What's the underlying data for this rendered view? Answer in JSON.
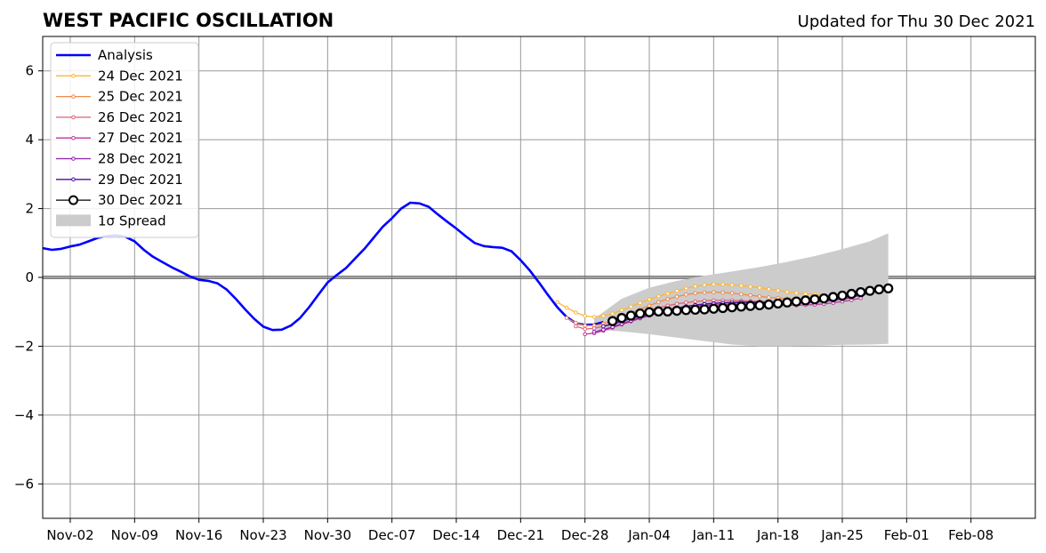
{
  "chart_data": {
    "type": "line",
    "title": "WEST PACIFIC OSCILLATION",
    "subtitle": "Updated for Thu 30 Dec 2021",
    "xlabel": "",
    "ylabel": "",
    "xlim": [
      "2021-10-30",
      "2022-02-15"
    ],
    "ylim": [
      -7,
      7
    ],
    "yticks": [
      -6,
      -4,
      -2,
      0,
      2,
      4,
      6
    ],
    "ytick_labels": [
      "−6",
      "−4",
      "−2",
      "0",
      "2",
      "4",
      "6"
    ],
    "xticks": [
      "2021-11-02",
      "2021-11-09",
      "2021-11-16",
      "2021-11-23",
      "2021-11-30",
      "2021-12-07",
      "2021-12-14",
      "2021-12-21",
      "2021-12-28",
      "2022-01-04",
      "2022-01-11",
      "2022-01-18",
      "2022-01-25",
      "2022-02-01",
      "2022-02-08"
    ],
    "xtick_labels": [
      "Nov-02",
      "Nov-09",
      "Nov-16",
      "Nov-23",
      "Nov-30",
      "Dec-07",
      "Dec-14",
      "Dec-21",
      "Dec-28",
      "Jan-04",
      "Jan-11",
      "Jan-18",
      "Jan-25",
      "Feb-01",
      "Feb-08"
    ],
    "grid": true,
    "legend_position": "top-left",
    "zero_line": 0,
    "series": [
      {
        "name": "Analysis",
        "color": "#0000ff",
        "style": "line",
        "x": [
          "2021-10-30",
          "2021-10-31",
          "2021-11-01",
          "2021-11-02",
          "2021-11-03",
          "2021-11-04",
          "2021-11-05",
          "2021-11-06",
          "2021-11-07",
          "2021-11-08",
          "2021-11-09",
          "2021-11-10",
          "2021-11-11",
          "2021-11-12",
          "2021-11-13",
          "2021-11-14",
          "2021-11-15",
          "2021-11-16",
          "2021-11-17",
          "2021-11-18",
          "2021-11-19",
          "2021-11-20",
          "2021-11-21",
          "2021-11-22",
          "2021-11-23",
          "2021-11-24",
          "2021-11-25",
          "2021-11-26",
          "2021-11-27",
          "2021-11-28",
          "2021-11-29",
          "2021-11-30",
          "2021-12-01",
          "2021-12-02",
          "2021-12-03",
          "2021-12-04",
          "2021-12-05",
          "2021-12-06",
          "2021-12-07",
          "2021-12-08",
          "2021-12-09",
          "2021-12-10",
          "2021-12-11",
          "2021-12-12",
          "2021-12-13",
          "2021-12-14",
          "2021-12-15",
          "2021-12-16",
          "2021-12-17",
          "2021-12-18",
          "2021-12-19",
          "2021-12-20",
          "2021-12-21",
          "2021-12-22",
          "2021-12-23",
          "2021-12-24",
          "2021-12-25",
          "2021-12-26",
          "2021-12-27",
          "2021-12-28",
          "2021-12-29",
          "2021-12-30"
        ],
        "y": [
          0.85,
          0.8,
          0.83,
          0.9,
          0.95,
          1.05,
          1.15,
          1.2,
          1.22,
          1.18,
          1.05,
          0.8,
          0.6,
          0.45,
          0.3,
          0.17,
          0.03,
          -0.07,
          -0.1,
          -0.17,
          -0.35,
          -0.62,
          -0.92,
          -1.2,
          -1.43,
          -1.53,
          -1.52,
          -1.4,
          -1.18,
          -0.86,
          -0.5,
          -0.15,
          0.07,
          0.27,
          0.55,
          0.83,
          1.15,
          1.47,
          1.72,
          2.0,
          2.17,
          2.15,
          2.05,
          1.83,
          1.62,
          1.42,
          1.2,
          1.0,
          0.91,
          0.88,
          0.86,
          0.76,
          0.5,
          0.2,
          -0.15,
          -0.52,
          -0.87,
          -1.15,
          -1.33,
          -1.38,
          -1.37,
          -1.3
        ]
      },
      {
        "name": "24 Dec 2021",
        "color": "#fbb735",
        "style": "marker-line",
        "x": [
          "2021-12-25",
          "2021-12-26",
          "2021-12-27",
          "2021-12-28",
          "2021-12-29",
          "2021-12-30",
          "2021-12-31",
          "2022-01-01",
          "2022-01-02",
          "2022-01-03",
          "2022-01-04",
          "2022-01-05",
          "2022-01-06",
          "2022-01-07",
          "2022-01-08",
          "2022-01-09",
          "2022-01-10",
          "2022-01-11",
          "2022-01-12",
          "2022-01-13",
          "2022-01-14",
          "2022-01-15",
          "2022-01-16",
          "2022-01-17",
          "2022-01-18",
          "2022-01-19",
          "2022-01-20",
          "2022-01-21",
          "2022-01-22",
          "2022-01-23",
          "2022-01-24"
        ],
        "y": [
          -0.72,
          -0.88,
          -1.02,
          -1.12,
          -1.15,
          -1.12,
          -1.05,
          -0.95,
          -0.85,
          -0.74,
          -0.64,
          -0.55,
          -0.47,
          -0.39,
          -0.32,
          -0.26,
          -0.22,
          -0.2,
          -0.2,
          -0.22,
          -0.24,
          -0.27,
          -0.3,
          -0.34,
          -0.38,
          -0.42,
          -0.45,
          -0.48,
          -0.5,
          -0.52,
          -0.55
        ]
      },
      {
        "name": "25 Dec 2021",
        "color": "#f1894a",
        "style": "marker-line",
        "x": [
          "2021-12-26",
          "2021-12-27",
          "2021-12-28",
          "2021-12-29",
          "2021-12-30",
          "2021-12-31",
          "2022-01-01",
          "2022-01-02",
          "2022-01-03",
          "2022-01-04",
          "2022-01-05",
          "2022-01-06",
          "2022-01-07",
          "2022-01-08",
          "2022-01-09",
          "2022-01-10",
          "2022-01-11",
          "2022-01-12",
          "2022-01-13",
          "2022-01-14",
          "2022-01-15",
          "2022-01-16",
          "2022-01-17",
          "2022-01-18",
          "2022-01-19",
          "2022-01-20",
          "2022-01-21",
          "2022-01-22",
          "2022-01-23",
          "2022-01-24",
          "2022-01-25"
        ],
        "y": [
          -1.18,
          -1.32,
          -1.4,
          -1.4,
          -1.35,
          -1.25,
          -1.14,
          -1.03,
          -0.92,
          -0.82,
          -0.72,
          -0.63,
          -0.56,
          -0.5,
          -0.46,
          -0.44,
          -0.43,
          -0.44,
          -0.46,
          -0.49,
          -0.52,
          -0.55,
          -0.58,
          -0.6,
          -0.62,
          -0.63,
          -0.64,
          -0.64,
          -0.63,
          -0.62,
          -0.6
        ]
      },
      {
        "name": "26 Dec 2021",
        "color": "#e06176",
        "style": "marker-line",
        "x": [
          "2021-12-27",
          "2021-12-28",
          "2021-12-29",
          "2021-12-30",
          "2021-12-31",
          "2022-01-01",
          "2022-01-02",
          "2022-01-03",
          "2022-01-04",
          "2022-01-05",
          "2022-01-06",
          "2022-01-07",
          "2022-01-08",
          "2022-01-09",
          "2022-01-10",
          "2022-01-11",
          "2022-01-12",
          "2022-01-13",
          "2022-01-14",
          "2022-01-15",
          "2022-01-16",
          "2022-01-17",
          "2022-01-18",
          "2022-01-19",
          "2022-01-20",
          "2022-01-21",
          "2022-01-22",
          "2022-01-23",
          "2022-01-24",
          "2022-01-25",
          "2022-01-26"
        ],
        "y": [
          -1.42,
          -1.5,
          -1.48,
          -1.42,
          -1.33,
          -1.23,
          -1.13,
          -1.03,
          -0.95,
          -0.88,
          -0.82,
          -0.77,
          -0.73,
          -0.7,
          -0.68,
          -0.67,
          -0.67,
          -0.67,
          -0.68,
          -0.69,
          -0.7,
          -0.71,
          -0.72,
          -0.72,
          -0.72,
          -0.71,
          -0.7,
          -0.68,
          -0.66,
          -0.63,
          -0.6
        ]
      },
      {
        "name": "27 Dec 2021",
        "color": "#b83a9b",
        "style": "marker-line",
        "x": [
          "2021-12-28",
          "2021-12-29",
          "2021-12-30",
          "2021-12-31",
          "2022-01-01",
          "2022-01-02",
          "2022-01-03",
          "2022-01-04",
          "2022-01-05",
          "2022-01-06",
          "2022-01-07",
          "2022-01-08",
          "2022-01-09",
          "2022-01-10",
          "2022-01-11",
          "2022-01-12",
          "2022-01-13",
          "2022-01-14",
          "2022-01-15",
          "2022-01-16",
          "2022-01-17",
          "2022-01-18",
          "2022-01-19",
          "2022-01-20",
          "2022-01-21",
          "2022-01-22",
          "2022-01-23",
          "2022-01-24",
          "2022-01-25",
          "2022-01-26",
          "2022-01-27"
        ],
        "y": [
          -1.65,
          -1.62,
          -1.55,
          -1.46,
          -1.37,
          -1.28,
          -1.19,
          -1.11,
          -1.04,
          -0.98,
          -0.93,
          -0.89,
          -0.85,
          -0.82,
          -0.8,
          -0.79,
          -0.78,
          -0.78,
          -0.78,
          -0.79,
          -0.8,
          -0.8,
          -0.81,
          -0.81,
          -0.8,
          -0.79,
          -0.77,
          -0.74,
          -0.7,
          -0.66,
          -0.6
        ]
      },
      {
        "name": "28 Dec 2021",
        "color": "#8c1fab",
        "style": "marker-line",
        "x": [
          "2021-12-29",
          "2021-12-30",
          "2021-12-31",
          "2022-01-01",
          "2022-01-02",
          "2022-01-03",
          "2022-01-04",
          "2022-01-05",
          "2022-01-06",
          "2022-01-07",
          "2022-01-08",
          "2022-01-09",
          "2022-01-10",
          "2022-01-11",
          "2022-01-12",
          "2022-01-13",
          "2022-01-14",
          "2022-01-15",
          "2022-01-16",
          "2022-01-17",
          "2022-01-18",
          "2022-01-19",
          "2022-01-20",
          "2022-01-21",
          "2022-01-22",
          "2022-01-23",
          "2022-01-24",
          "2022-01-25",
          "2022-01-26",
          "2022-01-27",
          "2022-01-28"
        ],
        "y": [
          -1.58,
          -1.52,
          -1.44,
          -1.35,
          -1.26,
          -1.17,
          -1.09,
          -1.01,
          -0.95,
          -0.89,
          -0.84,
          -0.8,
          -0.77,
          -0.75,
          -0.74,
          -0.73,
          -0.73,
          -0.73,
          -0.74,
          -0.74,
          -0.75,
          -0.75,
          -0.75,
          -0.74,
          -0.72,
          -0.7,
          -0.67,
          -0.63,
          -0.58,
          -0.52,
          -0.46
        ]
      },
      {
        "name": "29 Dec 2021",
        "color": "#4b0c9c",
        "style": "marker-line",
        "x": [
          "2021-12-30",
          "2021-12-31",
          "2022-01-01",
          "2022-01-02",
          "2022-01-03",
          "2022-01-04",
          "2022-01-05",
          "2022-01-06",
          "2022-01-07",
          "2022-01-08",
          "2022-01-09",
          "2022-01-10",
          "2022-01-11",
          "2022-01-12",
          "2022-01-13",
          "2022-01-14",
          "2022-01-15",
          "2022-01-16",
          "2022-01-17",
          "2022-01-18",
          "2022-01-19",
          "2022-01-20",
          "2022-01-21",
          "2022-01-22",
          "2022-01-23",
          "2022-01-24",
          "2022-01-25",
          "2022-01-26",
          "2022-01-27",
          "2022-01-28",
          "2022-01-29"
        ],
        "y": [
          -1.42,
          -1.36,
          -1.28,
          -1.2,
          -1.12,
          -1.05,
          -0.99,
          -0.94,
          -0.89,
          -0.85,
          -0.81,
          -0.78,
          -0.76,
          -0.74,
          -0.73,
          -0.72,
          -0.72,
          -0.72,
          -0.72,
          -0.72,
          -0.71,
          -0.7,
          -0.69,
          -0.67,
          -0.65,
          -0.62,
          -0.58,
          -0.54,
          -0.49,
          -0.43,
          -0.37
        ]
      },
      {
        "name": "30 Dec 2021",
        "color": "#000000",
        "style": "circle-line",
        "x": [
          "2021-12-31",
          "2022-01-01",
          "2022-01-02",
          "2022-01-03",
          "2022-01-04",
          "2022-01-05",
          "2022-01-06",
          "2022-01-07",
          "2022-01-08",
          "2022-01-09",
          "2022-01-10",
          "2022-01-11",
          "2022-01-12",
          "2022-01-13",
          "2022-01-14",
          "2022-01-15",
          "2022-01-16",
          "2022-01-17",
          "2022-01-18",
          "2022-01-19",
          "2022-01-20",
          "2022-01-21",
          "2022-01-22",
          "2022-01-23",
          "2022-01-24",
          "2022-01-25",
          "2022-01-26",
          "2022-01-27",
          "2022-01-28",
          "2022-01-29",
          "2022-01-30"
        ],
        "y": [
          -1.27,
          -1.18,
          -1.11,
          -1.05,
          -1.01,
          -0.99,
          -0.99,
          -0.97,
          -0.95,
          -0.94,
          -0.93,
          -0.91,
          -0.89,
          -0.87,
          -0.85,
          -0.83,
          -0.81,
          -0.79,
          -0.76,
          -0.73,
          -0.7,
          -0.67,
          -0.64,
          -0.61,
          -0.57,
          -0.53,
          -0.48,
          -0.43,
          -0.39,
          -0.35,
          -0.32
        ]
      },
      {
        "name": "1σ Spread",
        "color": "#cccccc",
        "style": "band",
        "x": [
          "2021-12-29",
          "2022-01-01",
          "2022-01-04",
          "2022-01-07",
          "2022-01-10",
          "2022-01-13",
          "2022-01-16",
          "2022-01-19",
          "2022-01-22",
          "2022-01-25",
          "2022-01-28",
          "2022-01-30"
        ],
        "upper": [
          -1.2,
          -0.62,
          -0.3,
          -0.1,
          0.05,
          0.17,
          0.3,
          0.45,
          0.62,
          0.82,
          1.05,
          1.28
        ],
        "lower": [
          -1.52,
          -1.57,
          -1.65,
          -1.75,
          -1.85,
          -1.95,
          -2.0,
          -2.0,
          -1.98,
          -1.96,
          -1.95,
          -1.93
        ]
      }
    ]
  }
}
